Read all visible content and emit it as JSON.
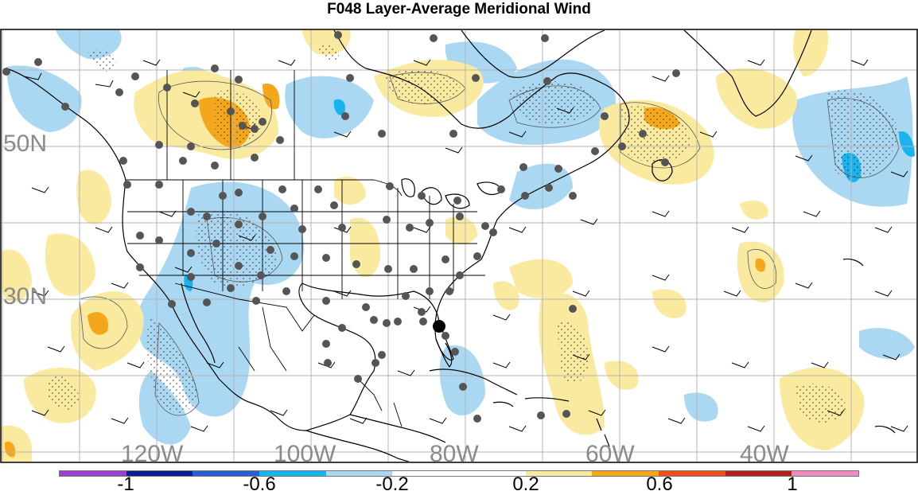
{
  "title": "F048 Layer-Average Meridional Wind",
  "latitude_labels": [
    "50N",
    "30N"
  ],
  "longitude_labels": [
    "120W",
    "100W",
    "80W",
    "60W",
    "40W"
  ],
  "colorbar": {
    "colors": [
      "#9b3fcf",
      "#0a1f8f",
      "#2a5fd0",
      "#19b4ee",
      "#aad8f2",
      "#ffffff",
      "#ffffff",
      "#faeaa0",
      "#f5a71c",
      "#e8511a",
      "#b02020",
      "#f08bc0"
    ],
    "tick_labels": [
      "-1",
      "-0.6",
      "-0.2",
      "0.2",
      "0.6",
      "1"
    ]
  },
  "colors": {
    "positive_light": "#faeaa0",
    "positive_medium": "#f5a71c",
    "negative_light": "#aad8f2",
    "negative_medium": "#19b4ee",
    "station_dot": "#555555",
    "highlight_station": "#000000"
  }
}
